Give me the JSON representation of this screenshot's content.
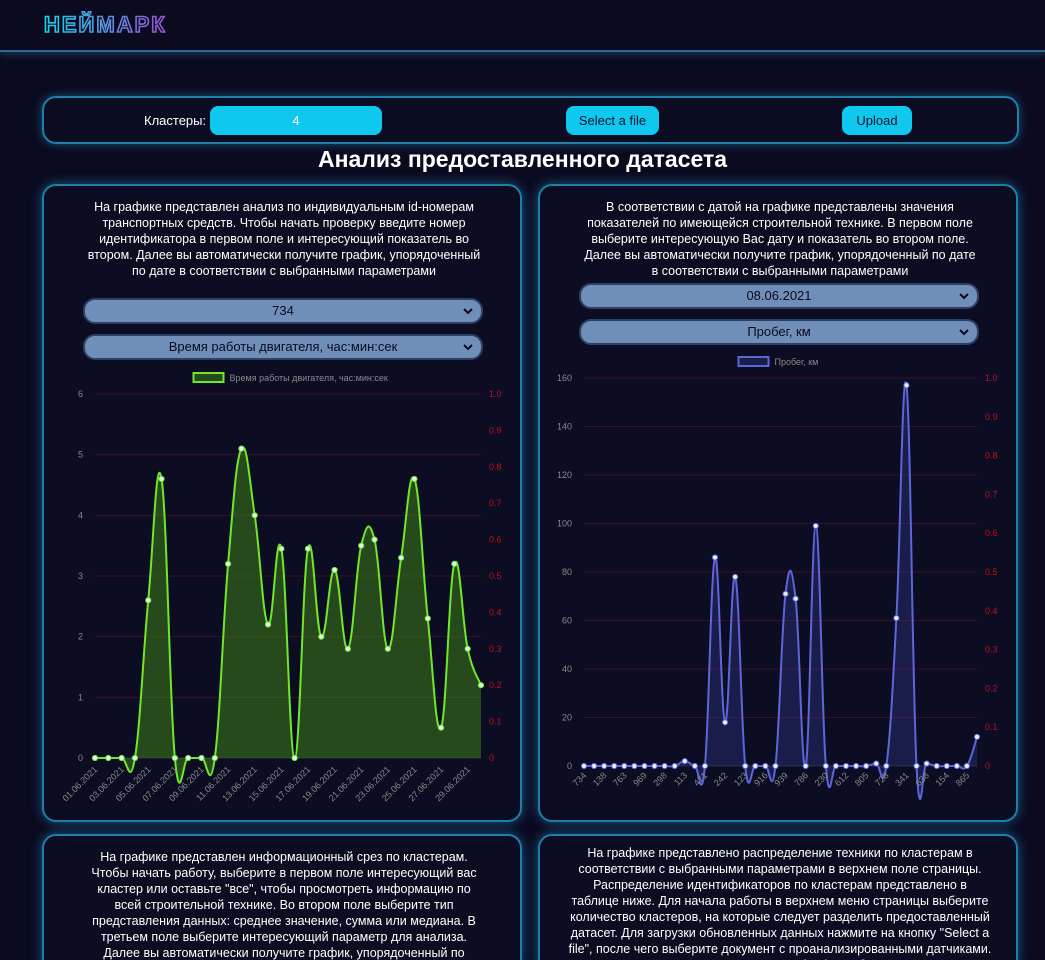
{
  "header": {
    "logo_text": "НЕЙМАРК"
  },
  "controls": {
    "clusters_label": "Кластеры:",
    "clusters_value": "4",
    "select_file_label": "Select a file",
    "upload_label": "Upload"
  },
  "page_title": "Анализ предоставленного датасета",
  "card1": {
    "description": "На графике представлен анализ по индивидуальным id-номерам транспортных средств. Чтобы начать проверку введите номер идентификатора в первом поле и интересующий показатель во втором. Далее вы автоматически получите график, упорядоченный по дате в соответствии с выбранными параметрами",
    "select_id": "734",
    "select_metric": "Время работы двигателя, час:мин:сек"
  },
  "card2": {
    "description": "В соответствии с датой на графике представлены значения показателей по имеющейся строительной технике. В первом поле выберите интересующую Вас дату и показатель во втором поле. Далее вы автоматически получите график, упорядоченный по дате в соответствии с выбранными параметрами",
    "select_date": "08.06.2021",
    "select_metric": "Пробег, км"
  },
  "card3": {
    "description": "На графике представлен информационный срез по кластерам. Чтобы начать работу, выберите в первом поле интересующий вас кластер или оставьте \"все\", чтобы просмотреть информацию по всей строительной технике. Во втором поле выберите тип представления данных: среднее значение, сумма или медиана. В третьем поле выберите интересующий параметр для анализа. Далее вы автоматически получите график, упорядоченный по"
  },
  "card4": {
    "description": "На графике представлено распределение техники по кластерам в соответствии с выбранными параметрами в верхнем поле страницы. Распределение идентификаторов по кластерам представлено в таблице ниже. Для начала работы в верхнем меню страницы выберите количество кластеров, на которые следует разделить предоставленный датасет. Для загрузки обновленных данных нажмите на кнопку \"Select a file\", после чего выберите документ с проанализированными датчиками. Нажмите кнопку \"Upload\", чтобы"
  },
  "chart_data": [
    {
      "type": "line",
      "legend": "Время работы двигателя, час:мин:сек",
      "color": "#6fe82a",
      "x": [
        "01.06.2021",
        "02.06.2021",
        "03.06.2021",
        "04.06.2021",
        "05.06.2021",
        "06.06.2021",
        "07.06.2021",
        "08.06.2021",
        "09.06.2021",
        "10.06.2021",
        "11.06.2021",
        "12.06.2021",
        "13.06.2021",
        "14.06.2021",
        "15.06.2021",
        "16.06.2021",
        "17.06.2021",
        "18.06.2021",
        "19.06.2021",
        "20.06.2021",
        "21.06.2021",
        "22.06.2021",
        "23.06.2021",
        "24.06.2021",
        "25.06.2021",
        "26.06.2021",
        "27.06.2021",
        "28.06.2021",
        "29.06.2021",
        "30.06.2021"
      ],
      "xticks": [
        "01.06.2021",
        "03.06.2021",
        "05.06.2021",
        "07.06.2021",
        "09.06.2021",
        "11.06.2021",
        "13.06.2021",
        "15.06.2021",
        "17.06.2021",
        "19.06.2021",
        "21.06.2021",
        "23.06.2021",
        "25.06.2021",
        "27.06.2021",
        "29.06.2021"
      ],
      "values": [
        0,
        0,
        0,
        0,
        2.6,
        4.6,
        0,
        0,
        0,
        0,
        3.2,
        5.1,
        4.0,
        2.2,
        3.45,
        0,
        3.45,
        2.0,
        3.1,
        1.8,
        3.5,
        3.6,
        1.8,
        3.3,
        4.6,
        2.3,
        0.5,
        3.2,
        1.8,
        1.2
      ],
      "ylim": [
        0,
        6
      ],
      "yticks": [
        0,
        1,
        2,
        3,
        4,
        5,
        6
      ],
      "y2lim": [
        0,
        1.0
      ],
      "y2ticks": [
        "0",
        "0.1",
        "0.2",
        "0.3",
        "0.4",
        "0.5",
        "0.6",
        "0.7",
        "0.8",
        "0.9",
        "1.0"
      ],
      "grid": true,
      "legend_position": "top"
    },
    {
      "type": "line",
      "legend": "Пробег, км",
      "color": "#5d66d8",
      "x": [
        "734",
        "0",
        "138",
        "0",
        "763",
        "0",
        "969",
        "0",
        "298",
        "0",
        "113",
        "0",
        "471",
        "0",
        "242",
        "0",
        "123",
        "0",
        "916",
        "0",
        "939",
        "0",
        "786",
        "0",
        "230",
        "0",
        "612",
        "0",
        "805",
        "0",
        "728",
        "0",
        "341",
        "0",
        "638",
        "0",
        "154",
        "0",
        "865",
        "0"
      ],
      "xticks": [
        "734",
        "138",
        "763",
        "969",
        "298",
        "113",
        "471",
        "242",
        "123",
        "916",
        "939",
        "786",
        "230",
        "612",
        "805",
        "728",
        "341",
        "638",
        "154",
        "865"
      ],
      "values": [
        0,
        0,
        0,
        0,
        0,
        0,
        0,
        0,
        0,
        0,
        2,
        0,
        0,
        86,
        18,
        78,
        0,
        0,
        0,
        0,
        71,
        69,
        0,
        99,
        0,
        0,
        0,
        0,
        0,
        1,
        0,
        61,
        157,
        0,
        1,
        0,
        0,
        0,
        0,
        12
      ],
      "ylim": [
        0,
        160
      ],
      "yticks": [
        0,
        20,
        40,
        60,
        80,
        100,
        120,
        140,
        160
      ],
      "y2lim": [
        0,
        1.0
      ],
      "y2ticks": [
        "0",
        "0.1",
        "0.2",
        "0.3",
        "0.4",
        "0.5",
        "0.6",
        "0.7",
        "0.8",
        "0.9",
        "1.0"
      ],
      "grid": true,
      "legend_position": "top"
    }
  ]
}
